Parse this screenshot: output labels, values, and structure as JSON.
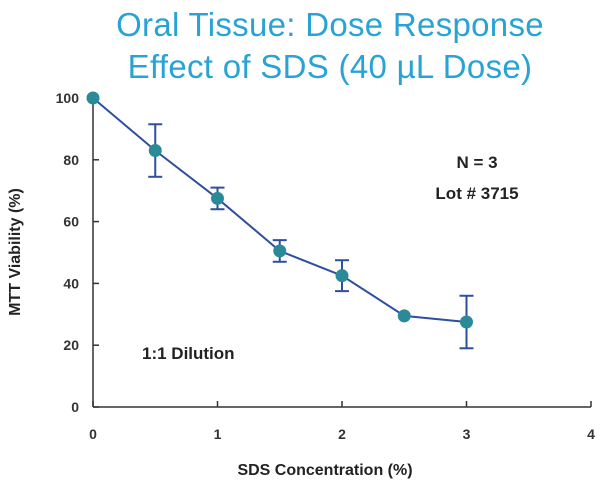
{
  "chart_data": {
    "type": "line",
    "title_line1": "Oral Tissue: Dose Response",
    "title_line2": "Effect of SDS (40  µL Dose)",
    "xlabel": "SDS Concentration (%)",
    "ylabel": "MTT Viability (%)",
    "xlim": [
      0,
      4
    ],
    "ylim": [
      0,
      100
    ],
    "x_ticks": [
      "0",
      "1",
      "2",
      "3",
      "4"
    ],
    "y_ticks": [
      "0",
      "20",
      "40",
      "60",
      "80",
      "100"
    ],
    "series": [
      {
        "x": [
          0,
          0.5,
          1.0,
          1.5,
          2.0,
          2.5,
          3.0
        ],
        "y": [
          100,
          83,
          67.5,
          50.5,
          42.5,
          29.5,
          27.5
        ],
        "error": [
          null,
          8.5,
          3.5,
          3.5,
          5.0,
          null,
          8.5
        ]
      }
    ],
    "annotations": {
      "n": "N = 3",
      "lot": "Lot # 3715",
      "dilution": "1:1 Dilution"
    },
    "colors": {
      "title": "#29a3d6",
      "line": "#2e4f9e",
      "marker": "#2b8a98",
      "error": "#2e4f9e",
      "axis": "#333333"
    },
    "grid": false,
    "legend": "none"
  }
}
